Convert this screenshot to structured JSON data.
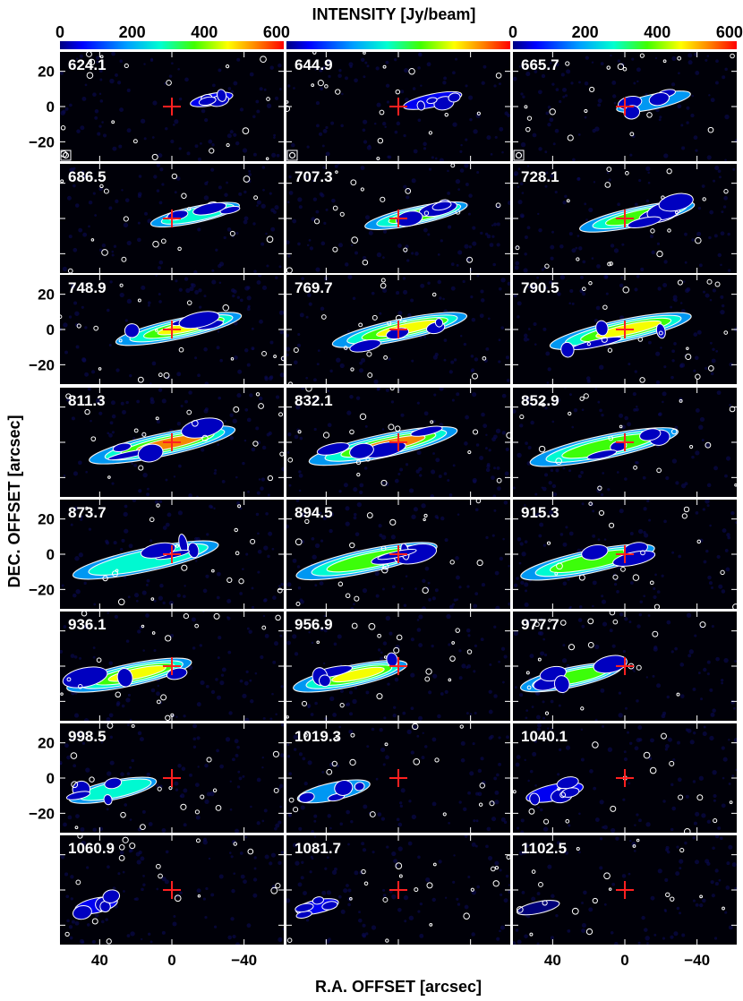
{
  "colorbar": {
    "title": "INTENSITY  [Jy/beam]",
    "ticks": [
      "0",
      "200",
      "400",
      "600"
    ],
    "tick_values": [
      0,
      200,
      400,
      600
    ],
    "range": [
      0,
      620
    ],
    "colors": [
      "#1a1aff",
      "#0060ff",
      "#00bfff",
      "#00ffd0",
      "#00ff40",
      "#80ff00",
      "#ffff00",
      "#ffa000",
      "#ff4000",
      "#ff0000"
    ]
  },
  "axes": {
    "xlabel": "R.A. OFFSET  [arcsec]",
    "ylabel": "DEC. OFFSET  [arcsec]",
    "xticks": [
      "40",
      "0",
      "−40"
    ],
    "xtick_values": [
      40,
      0,
      -40
    ],
    "yticks": [
      "20",
      "0",
      "−20"
    ],
    "ytick_values": [
      20,
      0,
      -20
    ],
    "xlim": [
      62,
      -62
    ],
    "ylim": [
      -31,
      31
    ]
  },
  "channels": [
    {
      "label": "624.1",
      "peak": 70
    },
    {
      "label": "644.9",
      "peak": 90
    },
    {
      "label": "665.7",
      "peak": 150
    },
    {
      "label": "686.5",
      "peak": 230
    },
    {
      "label": "707.3",
      "peak": 330
    },
    {
      "label": "728.1",
      "peak": 300
    },
    {
      "label": "748.9",
      "peak": 420
    },
    {
      "label": "769.7",
      "peak": 430
    },
    {
      "label": "790.5",
      "peak": 420
    },
    {
      "label": "811.3",
      "peak": 500
    },
    {
      "label": "832.1",
      "peak": 470
    },
    {
      "label": "852.9",
      "peak": 360
    },
    {
      "label": "873.7",
      "peak": 260
    },
    {
      "label": "894.5",
      "peak": 320
    },
    {
      "label": "915.3",
      "peak": 400
    },
    {
      "label": "936.1",
      "peak": 440
    },
    {
      "label": "956.9",
      "peak": 420
    },
    {
      "label": "977.7",
      "peak": 330
    },
    {
      "label": "998.5",
      "peak": 200
    },
    {
      "label": "1019.3",
      "peak": 130
    },
    {
      "label": "1040.1",
      "peak": 80
    },
    {
      "label": "1060.9",
      "peak": 80
    },
    {
      "label": "1081.7",
      "peak": 80
    },
    {
      "label": "1102.5",
      "peak": 20
    }
  ],
  "marker_color": "#ff2020",
  "contour_color": "#ffffff"
}
